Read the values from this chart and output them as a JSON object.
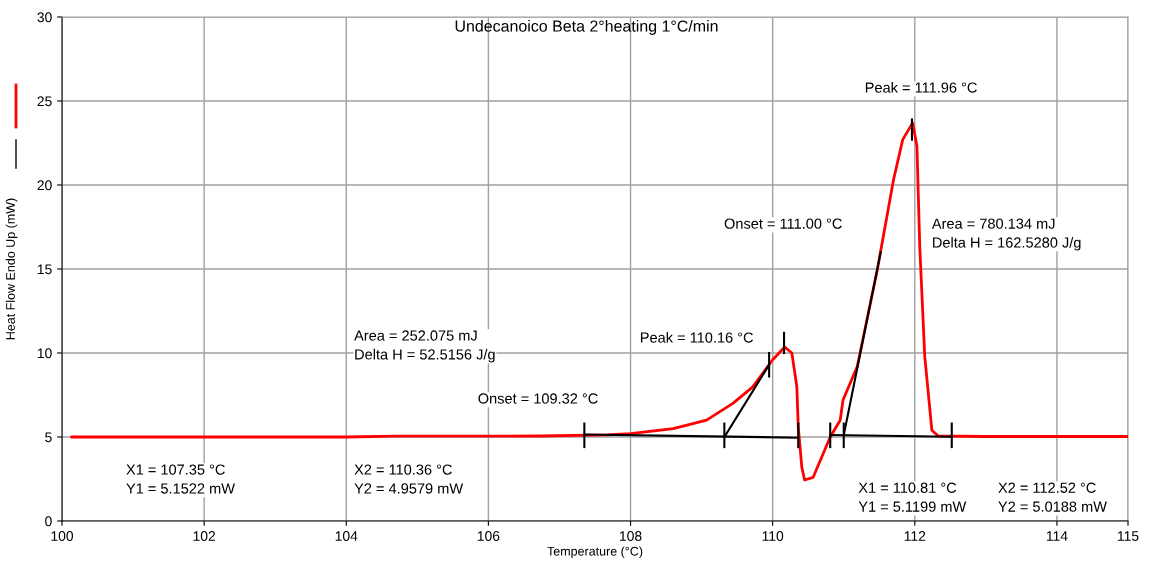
{
  "chart_data": {
    "type": "line",
    "title": "Undecanoico Beta 2°heating 1°C/min",
    "xlabel": "Temperature (°C)",
    "ylabel": "Heat Flow Endo Up (mW)",
    "xlim": [
      100,
      115
    ],
    "xticks": [
      100,
      102,
      104,
      106,
      108,
      110,
      112,
      114,
      115
    ],
    "ylim": [
      0,
      30
    ],
    "yticks": [
      0,
      5,
      10,
      15,
      20,
      25,
      30
    ],
    "grid": true,
    "series": [
      {
        "color": "#ff0000",
        "x": [
          100.14,
          102.0,
          104.0,
          104.7,
          105.5,
          106.73,
          107.67,
          108.0,
          108.6,
          109.07,
          109.44,
          109.72,
          110.0,
          110.17,
          110.27,
          110.34,
          110.36,
          110.41,
          110.45,
          110.57,
          110.81,
          110.95,
          110.99,
          111.19,
          111.47,
          111.7,
          111.83,
          111.97,
          112.03,
          112.07,
          112.14,
          112.24,
          112.33,
          113.0,
          114.0,
          115.0
        ],
        "values": [
          5.0,
          5.0,
          5.0,
          5.05,
          5.05,
          5.06,
          5.12,
          5.2,
          5.5,
          6.0,
          7.0,
          7.98,
          9.6,
          10.36,
          10.0,
          8.0,
          5.6,
          3.2,
          2.44,
          2.6,
          5.0,
          6.0,
          7.2,
          9.2,
          14.9,
          20.3,
          22.7,
          23.7,
          22.3,
          16.3,
          9.8,
          5.4,
          5.06,
          5.03,
          5.03,
          5.03
        ]
      },
      {
        "color": "#000000",
        "x": [
          107.35,
          110.36
        ],
        "values": [
          5.15,
          4.96
        ]
      },
      {
        "color": "#000000",
        "x": [
          110.81,
          112.52
        ],
        "values": [
          5.12,
          5.02
        ]
      },
      {
        "color": "#000000",
        "x": [
          109.32,
          109.95
        ],
        "values": [
          5.0,
          9.3
        ]
      },
      {
        "color": "#000000",
        "x": [
          111.0,
          111.52
        ],
        "values": [
          5.1,
          16.0
        ]
      },
      {
        "color": "#000000",
        "x": [
          107.35,
          107.35
        ],
        "values": [
          4.4,
          5.8
        ]
      },
      {
        "color": "#000000",
        "x": [
          109.32,
          109.32
        ],
        "values": [
          4.4,
          5.8
        ]
      },
      {
        "color": "#000000",
        "x": [
          109.95,
          109.95
        ],
        "values": [
          8.6,
          10.0
        ]
      },
      {
        "color": "#000000",
        "x": [
          110.16,
          110.16
        ],
        "values": [
          10.0,
          11.2
        ]
      },
      {
        "color": "#000000",
        "x": [
          110.36,
          110.36
        ],
        "values": [
          4.4,
          5.8
        ]
      },
      {
        "color": "#000000",
        "x": [
          110.81,
          110.81
        ],
        "values": [
          4.4,
          5.8
        ]
      },
      {
        "color": "#000000",
        "x": [
          111.0,
          111.0
        ],
        "values": [
          4.4,
          5.8
        ]
      },
      {
        "color": "#000000",
        "x": [
          111.96,
          111.96
        ],
        "values": [
          22.7,
          23.9
        ]
      },
      {
        "color": "#000000",
        "x": [
          112.52,
          112.52
        ],
        "values": [
          4.4,
          5.8
        ]
      }
    ],
    "annotations": [
      "Peak = 111.96 °C",
      "Onset = 111.00 °C",
      "Area = 780.134 mJ\nDelta H = 162.5280 J/g",
      "Area = 252.075 mJ\nDelta H = 52.5156 J/g",
      "Peak = 110.16 °C",
      "Onset = 109.32 °C",
      "X1 = 107.35 °C\nY1 = 5.1522 mW",
      "X2 = 110.36 °C\nY2 = 4.9579 mW",
      "X1 = 110.81 °C\nY1 = 5.1199 mW",
      "X2 = 112.52 °C\nY2 = 5.0188 mW"
    ]
  }
}
